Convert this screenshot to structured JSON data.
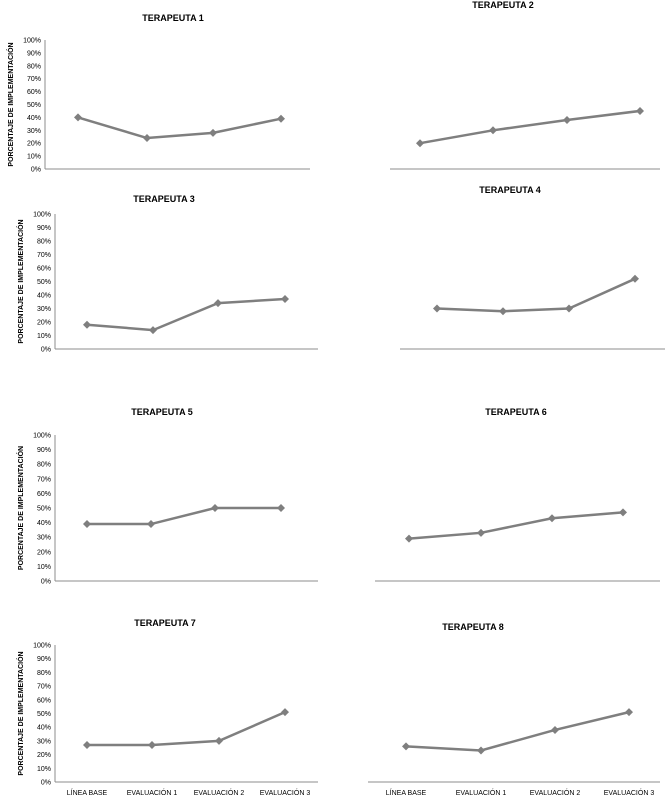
{
  "chart_data": [
    {
      "type": "line",
      "title": "TERAPEUTA 1",
      "ylabel": "PORCENTAJE DE IMPLEMENTACIÓN",
      "categories": [
        "LÍNEA BASE",
        "EVALUACIÓN 1",
        "EVALUACIÓN 2",
        "EVALUACIÓN 3"
      ],
      "ylim": [
        0,
        100
      ],
      "ytick_labels": [
        "0%",
        "10%",
        "20%",
        "30%",
        "40%",
        "50%",
        "60%",
        "70%",
        "80%",
        "90%",
        "100%"
      ],
      "show_y_axis": true,
      "show_x_labels": false,
      "series": [
        {
          "values": [
            40,
            24,
            28,
            39
          ]
        }
      ]
    },
    {
      "type": "line",
      "title": "TERAPEUTA 2",
      "ylabel": "",
      "categories": [
        "LÍNEA BASE",
        "EVALUACIÓN 1",
        "EVALUACIÓN 2",
        "EVALUACIÓN 3"
      ],
      "ylim": [
        0,
        100
      ],
      "ytick_labels": [],
      "show_y_axis": false,
      "show_x_labels": false,
      "series": [
        {
          "values": [
            20,
            30,
            38,
            45
          ]
        }
      ]
    },
    {
      "type": "line",
      "title": "TERAPEUTA 3",
      "ylabel": "PORCENTAJE DE IMPLEMENTACIÓN",
      "categories": [
        "LÍNEA BASE",
        "EVALUACIÓN 1",
        "EVALUACIÓN 2",
        "EVALUACIÓN 3"
      ],
      "ylim": [
        0,
        100
      ],
      "ytick_labels": [
        "0%",
        "10%",
        "20%",
        "30%",
        "40%",
        "50%",
        "60%",
        "70%",
        "80%",
        "90%",
        "100%"
      ],
      "show_y_axis": true,
      "show_x_labels": false,
      "series": [
        {
          "values": [
            18,
            14,
            34,
            37
          ]
        }
      ]
    },
    {
      "type": "line",
      "title": "TERAPEUTA 4",
      "ylabel": "",
      "categories": [
        "LÍNEA BASE",
        "EVALUACIÓN 1",
        "EVALUACIÓN 2",
        "EVALUACIÓN 3"
      ],
      "ylim": [
        0,
        100
      ],
      "ytick_labels": [],
      "show_y_axis": false,
      "show_x_labels": false,
      "series": [
        {
          "values": [
            30,
            28,
            30,
            52
          ]
        }
      ]
    },
    {
      "type": "line",
      "title": "TERAPEUTA 5",
      "ylabel": "PORCENTAJE DE IMPLEMENTACIÓN",
      "categories": [
        "LÍNEA BASE",
        "EVALUACIÓN 1",
        "EVALUACIÓN 2",
        "EVALUACIÓN 3"
      ],
      "ylim": [
        0,
        100
      ],
      "ytick_labels": [
        "0%",
        "10%",
        "20%",
        "30%",
        "40%",
        "50%",
        "60%",
        "70%",
        "80%",
        "90%",
        "100%"
      ],
      "show_y_axis": true,
      "show_x_labels": false,
      "series": [
        {
          "values": [
            39,
            39,
            50,
            50
          ]
        }
      ]
    },
    {
      "type": "line",
      "title": "TERAPEUTA 6",
      "ylabel": "",
      "categories": [
        "LÍNEA BASE",
        "EVALUACIÓN 1",
        "EVALUACIÓN 2",
        "EVALUACIÓN 3"
      ],
      "ylim": [
        0,
        100
      ],
      "ytick_labels": [],
      "show_y_axis": false,
      "show_x_labels": false,
      "series": [
        {
          "values": [
            29,
            33,
            43,
            47
          ]
        }
      ]
    },
    {
      "type": "line",
      "title": "TERAPEUTA 7",
      "ylabel": "PORCENTAJE DE IMPLEMENTACIÓN",
      "categories": [
        "LÍNEA BASE",
        "EVALUACIÓN 1",
        "EVALUACIÓN 2",
        "EVALUACIÓN 3"
      ],
      "ylim": [
        0,
        100
      ],
      "ytick_labels": [
        "0%",
        "10%",
        "20%",
        "30%",
        "40%",
        "50%",
        "60%",
        "70%",
        "80%",
        "90%",
        "100%"
      ],
      "show_y_axis": true,
      "show_x_labels": true,
      "series": [
        {
          "values": [
            27,
            27,
            30,
            51
          ]
        }
      ]
    },
    {
      "type": "line",
      "title": "TERAPEUTA 8",
      "ylabel": "",
      "categories": [
        "LÍNEA BASE",
        "EVALUACIÓN 1",
        "EVALUACIÓN 2",
        "EVALUACIÓN 3"
      ],
      "ylim": [
        0,
        100
      ],
      "ytick_labels": [],
      "show_y_axis": false,
      "show_x_labels": true,
      "series": [
        {
          "values": [
            26,
            23,
            38,
            51
          ]
        }
      ]
    }
  ],
  "colors": {
    "series": "#7f7f7f",
    "axis": "#8c8c8c"
  }
}
